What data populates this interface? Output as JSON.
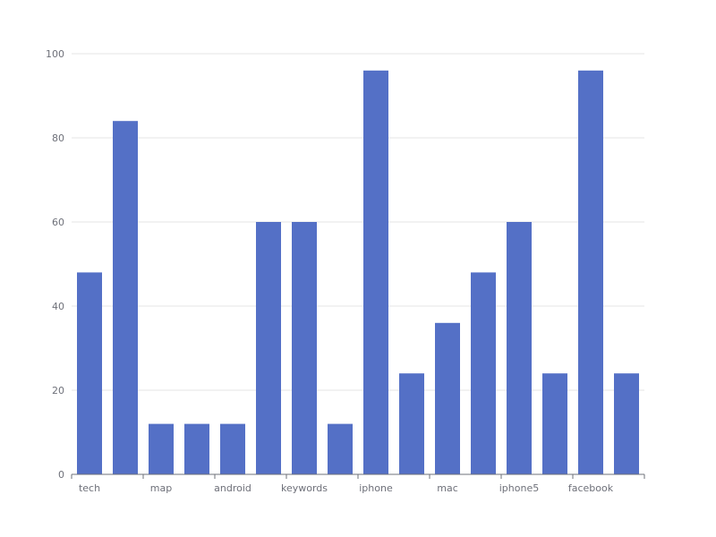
{
  "chart_data": {
    "type": "bar",
    "title": "",
    "xlabel": "",
    "ylabel": "",
    "ylim": [
      0,
      100
    ],
    "yticks": [
      0,
      20,
      40,
      60,
      80,
      100
    ],
    "grid": true,
    "bar_color": "#5470c6",
    "categories": [
      "tech",
      "",
      "map",
      "",
      "android",
      "",
      "keywords",
      "",
      "iphone",
      "",
      "mac",
      "",
      "iphone5",
      "",
      "facebook",
      ""
    ],
    "values": [
      48,
      84,
      12,
      12,
      12,
      60,
      60,
      12,
      96,
      24,
      36,
      48,
      60,
      24,
      96,
      24
    ]
  }
}
